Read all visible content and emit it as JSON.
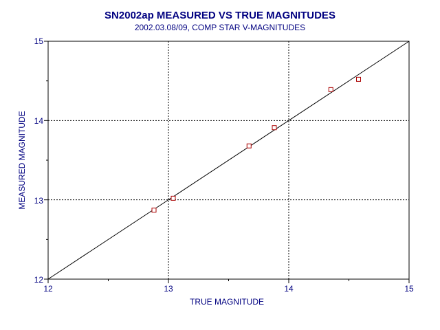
{
  "chart_data": {
    "type": "scatter",
    "title": "SN2002ap MEASURED VS TRUE MAGNITUDES",
    "subtitle": "2002.03.08/09, COMP STAR V-MAGNITUDES",
    "xlabel": "TRUE MAGNITUDE",
    "ylabel": "MEASURED MAGNITUDE",
    "xlim": [
      12,
      15
    ],
    "ylim": [
      12,
      15
    ],
    "x_ticks": [
      "12",
      "13",
      "14",
      "15"
    ],
    "y_ticks": [
      "12",
      "13",
      "14",
      "15"
    ],
    "grid": "dotted at 13 and 14",
    "reference_line": {
      "from": [
        12,
        12
      ],
      "to": [
        15,
        15
      ]
    },
    "points": [
      {
        "x": 12.88,
        "y": 12.87
      },
      {
        "x": 13.04,
        "y": 13.02
      },
      {
        "x": 13.67,
        "y": 13.68
      },
      {
        "x": 13.88,
        "y": 13.91
      },
      {
        "x": 14.35,
        "y": 14.39
      },
      {
        "x": 14.58,
        "y": 14.52
      }
    ],
    "colors": {
      "text": "#000080",
      "marker": "#aa0000",
      "axis": "#000000"
    }
  }
}
